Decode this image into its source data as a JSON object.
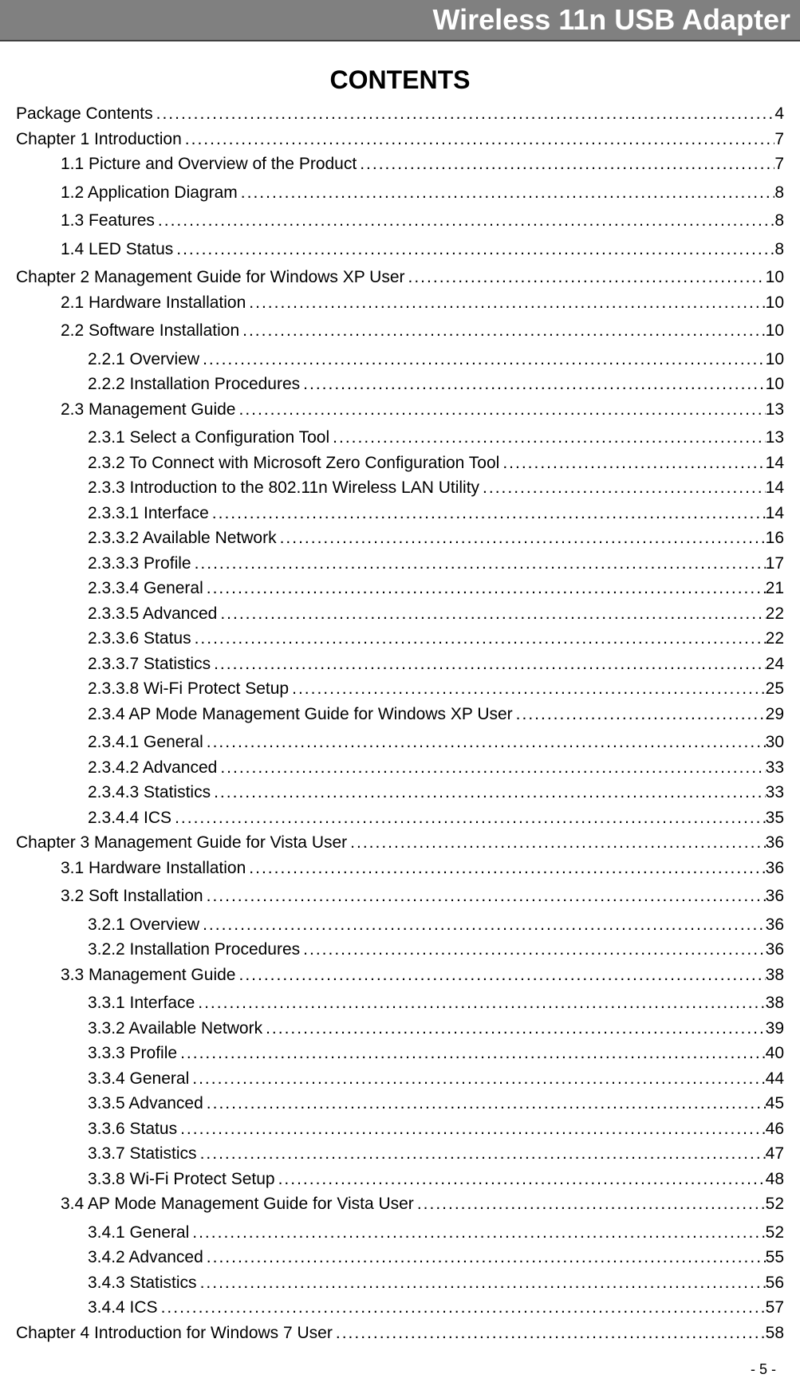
{
  "header": {
    "title": "Wireless 11n USB Adapter"
  },
  "contents_heading": "CONTENTS",
  "footer": {
    "page_label": "- 5 -"
  },
  "toc": [
    {
      "indent": 0,
      "label": "Package Contents",
      "page": "4"
    },
    {
      "indent": 0,
      "label": "Chapter 1  Introduction",
      "page": "7"
    },
    {
      "indent": 1,
      "label": "1.1    Picture and Overview of the Product",
      "page": "7",
      "gap_after": true
    },
    {
      "indent": 1,
      "label": "1.2    Application Diagram",
      "page": "8",
      "gap_after": true
    },
    {
      "indent": 1,
      "label": "1.3    Features",
      "page": "8",
      "gap_after": true
    },
    {
      "indent": 1,
      "label": "1.4    LED Status",
      "page": "8",
      "gap_after": true
    },
    {
      "indent": 0,
      "label": "Chapter 2  Management Guide for Windows XP User",
      "page": "10"
    },
    {
      "indent": 1,
      "label": "2.1    Hardware Installation",
      "page": "10",
      "gap_after": true
    },
    {
      "indent": 1,
      "label": "2.2    Software Installation",
      "page": "10",
      "gap_after": true
    },
    {
      "indent": 2,
      "label": "2.2.1    Overview",
      "page": "10"
    },
    {
      "indent": 2,
      "label": "2.2.2    Installation Procedures",
      "page": "10"
    },
    {
      "indent": 1,
      "label": "2.3      Management Guide",
      "page": "13",
      "gap_after": true
    },
    {
      "indent": 2,
      "label": "2.3.1    Select a Configuration Tool",
      "page": "13"
    },
    {
      "indent": 2,
      "label": "2.3.2    To Connect with Microsoft Zero Configuration Tool",
      "page": "14"
    },
    {
      "indent": 2,
      "label": "2.3.3    Introduction to the 802.11n Wireless LAN Utility",
      "page": "14"
    },
    {
      "indent": 2,
      "label": "2.3.3.1    Interface",
      "page": "14"
    },
    {
      "indent": 2,
      "label": "2.3.3.2    Available Network",
      "page": "16"
    },
    {
      "indent": 2,
      "label": "2.3.3.3    Profile",
      "page": "17"
    },
    {
      "indent": 2,
      "label": "2.3.3.4    General",
      "page": "21"
    },
    {
      "indent": 2,
      "label": "2.3.3.5    Advanced",
      "page": "22"
    },
    {
      "indent": 2,
      "label": "2.3.3.6    Status",
      "page": "22"
    },
    {
      "indent": 2,
      "label": "2.3.3.7    Statistics",
      "page": "24"
    },
    {
      "indent": 2,
      "label": "2.3.3.8    Wi-Fi Protect Setup",
      "page": "25"
    },
    {
      "indent": 2,
      "label": "2.3.4    AP Mode Management Guide for Windows XP User",
      "page": "29",
      "gap_after": true
    },
    {
      "indent": 2,
      "label": "2.3.4.1    General",
      "page": "30"
    },
    {
      "indent": 2,
      "label": "2.3.4.2    Advanced",
      "page": "33"
    },
    {
      "indent": 2,
      "label": "2.3.4.3    Statistics",
      "page": "33"
    },
    {
      "indent": 2,
      "label": "2.3.4.4    ICS",
      "page": "35"
    },
    {
      "indent": 0,
      "label": "Chapter 3  Management Guide for Vista User",
      "page": "36"
    },
    {
      "indent": 1,
      "label": "3.1    Hardware Installation",
      "page": "36",
      "gap_after": true
    },
    {
      "indent": 1,
      "label": "3.2    Soft Installation",
      "page": "36",
      "gap_after": true
    },
    {
      "indent": 2,
      "label": "3.2.1    Overview",
      "page": "36"
    },
    {
      "indent": 2,
      "label": "3.2.2    Installation Procedures",
      "page": "36"
    },
    {
      "indent": 1,
      "label": "3.3    Management Guide",
      "page": "38",
      "gap_after": true
    },
    {
      "indent": 2,
      "label": "3.3.1    Interface",
      "page": "38"
    },
    {
      "indent": 2,
      "label": "3.3.2    Available Network",
      "page": "39"
    },
    {
      "indent": 2,
      "label": "3.3.3    Profile",
      "page": "40"
    },
    {
      "indent": 2,
      "label": "3.3.4    General",
      "page": "44"
    },
    {
      "indent": 2,
      "label": "3.3.5    Advanced",
      "page": "45"
    },
    {
      "indent": 2,
      "label": "3.3.6    Status",
      "page": "46"
    },
    {
      "indent": 2,
      "label": "3.3.7    Statistics",
      "page": "47"
    },
    {
      "indent": 2,
      "label": "3.3.8    Wi-Fi Protect Setup",
      "page": "48"
    },
    {
      "indent": 1,
      "label": "3.4    AP Mode Management Guide for Vista User",
      "page": "52",
      "gap_after": true
    },
    {
      "indent": 2,
      "label": "3.4.1    General",
      "page": "52"
    },
    {
      "indent": 2,
      "label": "3.4.2    Advanced",
      "page": "55"
    },
    {
      "indent": 2,
      "label": "3.4.3    Statistics",
      "page": "56"
    },
    {
      "indent": 2,
      "label": "3.4.4    ICS",
      "page": "57"
    },
    {
      "indent": 0,
      "label": "Chapter 4  Introduction for Windows 7 User",
      "page": "58"
    }
  ],
  "styles": {
    "banner_bg": "#808080",
    "banner_color": "#ffffff",
    "text_color": "#000000",
    "font_family": "Arial",
    "title_fontsize": 32,
    "body_fontsize": 21
  }
}
